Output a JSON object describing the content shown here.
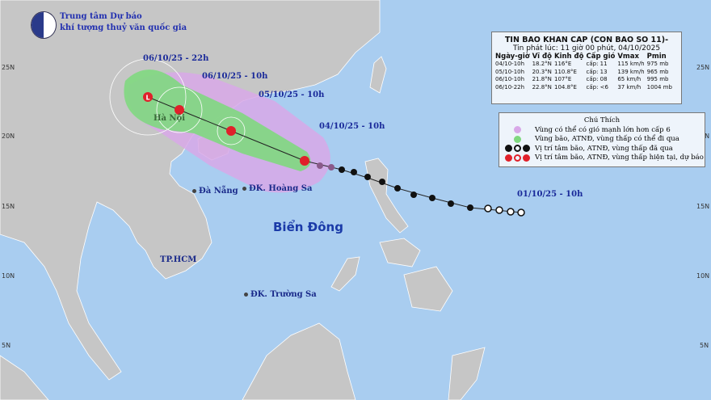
{
  "logo": {
    "line1": "Trung tâm Dự báo",
    "line2": "khí tượng thuỷ văn quốc gia",
    "emblem_text": "NCHMF"
  },
  "bulletin": {
    "title": "TIN BAO KHAN CAP (CON BAO SO 11)-",
    "issued": "Tin phát lúc: 11 giờ 00 phút, 04/10/2025",
    "columns": [
      "Ngày-giờ",
      "Vĩ độ",
      "Kinh độ",
      "Cấp gió",
      "Vmax",
      "Pmin"
    ],
    "rows": [
      [
        "04/10-10h",
        "18.2°N",
        "116°E",
        "cấp: 11",
        "115 km/h",
        "975 mb"
      ],
      [
        "05/10-10h",
        "20.3°N",
        "110.8°E",
        "cấp: 13",
        "139 km/h",
        "965 mb"
      ],
      [
        "06/10-10h",
        "21.8°N",
        "107°E",
        "cấp: 08",
        "65 km/h",
        "995 mb"
      ],
      [
        "06/10-22h",
        "22.8°N",
        "104.8°E",
        "cấp: <6",
        "37 km/h",
        "1004 mb"
      ]
    ]
  },
  "legend": {
    "title": "Chú Thích",
    "items": [
      {
        "color": "#d8a8e8",
        "label": "Vùng có thể có gió mạnh lớn hơn cấp 6"
      },
      {
        "color": "#7fd87f",
        "label": "Vùng bão, ATNĐ, vùng thấp có thể đi qua"
      },
      {
        "color": "#111111",
        "label": "Vị trí tâm bão, ATNĐ, vùng thấp đã qua"
      },
      {
        "color": "#e0202a",
        "label": "Vị trí tâm bão, ATNĐ, vùng thấp hiện tại, dự báo"
      }
    ]
  },
  "time_labels": {
    "t1": "06/10/25 - 22h",
    "t2": "06/10/25 - 10h",
    "t3": "05/10/25 - 10h",
    "t4": "04/10/25 - 10h",
    "t5": "01/10/25 - 10h"
  },
  "places": {
    "hanoi": "Hà Nội",
    "danang": "Đà Nẵng",
    "hoangsa": "ĐK. Hoàng Sa",
    "hcm": "TP.HCM",
    "truongsa": "ĐK. Trường Sa",
    "sea": "Biển Đông"
  },
  "latitudes": [
    "25N",
    "20N",
    "15N",
    "10N",
    "5N"
  ],
  "colors": {
    "ocean": "#a9cdf0",
    "land": "#c6c6c6",
    "wind_zone": "#d8a8e8",
    "storm_zone": "#7fd87f",
    "current": "#e0202a",
    "past": "#111111"
  }
}
